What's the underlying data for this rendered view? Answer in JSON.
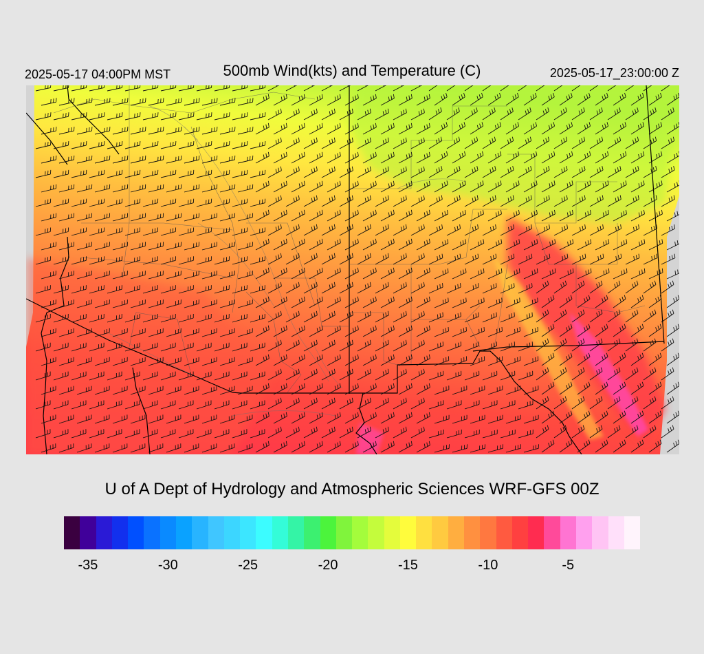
{
  "header": {
    "local_time": "2025-05-17 04:00PM MST",
    "title": "500mb Wind(kts) and Temperature (C)",
    "utc_time": "2025-05-17_23:00:00 Z"
  },
  "credit": "U of A Dept of Hydrology and Atmospheric Sciences WRF-GFS 00Z",
  "legend": {
    "unit": "C",
    "ticks": [
      "-35",
      "-30",
      "-25",
      "-20",
      "-15",
      "-10",
      "-5"
    ],
    "tick_values": [
      -35,
      -30,
      -25,
      -20,
      -15,
      -10,
      -5
    ],
    "min": -36,
    "max": -1,
    "colors": [
      "#3a0040",
      "#40009a",
      "#2a1ad6",
      "#1230ee",
      "#0050ff",
      "#0a72ff",
      "#0a8aff",
      "#0aa2ff",
      "#28b4ff",
      "#40c6ff",
      "#3cd6ff",
      "#3ce6ff",
      "#3cfcff",
      "#34fcd8",
      "#34f4a6",
      "#3cf070",
      "#4cf43c",
      "#80f43c",
      "#a4fc3c",
      "#c4fc3c",
      "#e4fc3c",
      "#fffc3c",
      "#ffe040",
      "#ffca40",
      "#ffae40",
      "#ff9040",
      "#ff7840",
      "#ff5a40",
      "#ff4040",
      "#ff2c50",
      "#ff4a9a",
      "#ff74d2",
      "#ffa0ee",
      "#ffc4f4",
      "#ffe0fa",
      "#fff4fc"
    ]
  },
  "map": {
    "field": "500mb temperature (C) with wind barbs (kts)",
    "background_color": "#d4d4d4",
    "temperature_colors": {
      "north": "#a4f43c",
      "north_central": "#e8fc40",
      "central": "#ffc040",
      "south_central": "#ff8a40",
      "south": "#ff4a40",
      "warm_band": "#ff2c50",
      "warmest": "#ff4ad2"
    }
  }
}
